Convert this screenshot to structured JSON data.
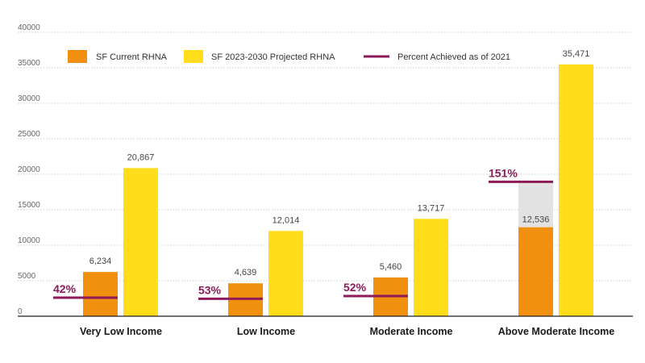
{
  "chart_data": {
    "type": "bar",
    "title": "",
    "xlabel": "",
    "ylabel": "",
    "ylim": [
      0,
      40000
    ],
    "yticks": [
      0,
      5000,
      10000,
      15000,
      20000,
      25000,
      30000,
      35000,
      40000
    ],
    "categories": [
      "Very Low Income",
      "Low Income",
      "Moderate Income",
      "Above Moderate Income"
    ],
    "series": [
      {
        "name": "SF Current RHNA",
        "values": [
          6234,
          4639,
          5460,
          12536
        ],
        "labels": [
          "6,234",
          "4,639",
          "5,460",
          "12,536"
        ],
        "color": "#F0900E"
      },
      {
        "name": "SF 2023-2030 Projected RHNA",
        "values": [
          20867,
          12014,
          13717,
          35471
        ],
        "labels": [
          "20,867",
          "12,014",
          "13,717",
          "35,471"
        ],
        "color": "#FFDD1A"
      }
    ],
    "percent_achieved": {
      "name": "Percent Achieved as of 2021",
      "color": "#8E1A5A",
      "labels": [
        "42%",
        "53%",
        "52%",
        "151%"
      ],
      "percent": [
        42,
        53,
        52,
        151
      ]
    },
    "overflow_color": "#E2E2E2",
    "grid": true,
    "legend": "top-left"
  }
}
